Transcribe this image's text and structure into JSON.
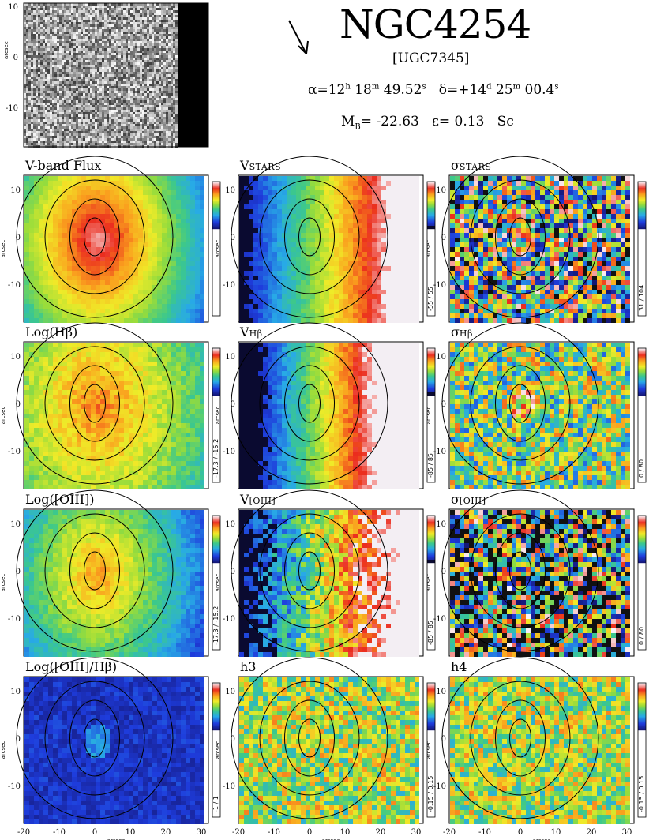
{
  "header": {
    "name": "NGC4254",
    "alt_name": "[UGC7345]",
    "ra_h": "12",
    "ra_m": "18",
    "ra_s": "49.52",
    "dec_d": "+14",
    "dec_m": "25",
    "dec_s": "00.4",
    "mb": "-22.63",
    "epsilon": "0.13",
    "type": "Sc"
  },
  "chart_data": {
    "type": "heatmap",
    "x_ticks": [
      -20,
      -10,
      0,
      10,
      20,
      30
    ],
    "y_ticks": [
      10,
      0,
      -10
    ],
    "xlim": [
      -20,
      32
    ],
    "ylim": [
      -18,
      13
    ],
    "xlabel": "arcsec",
    "ylabel": "arcsec",
    "panels": [
      {
        "row": 0,
        "col": 0,
        "title": "V-band Flux",
        "colormap": "rainbow",
        "pattern": "peak",
        "range": ""
      },
      {
        "row": 0,
        "col": 1,
        "title": "V",
        "title_sub": "STARS",
        "colormap": "velocity",
        "pattern": "velocity_stars",
        "range": "-55 / 55"
      },
      {
        "row": 0,
        "col": 2,
        "title": "σ",
        "title_sub": "STARS",
        "colormap": "rainbow",
        "pattern": "noisy",
        "range": "31 / 104"
      },
      {
        "row": 1,
        "col": 0,
        "title": "Log(Hβ)",
        "colormap": "rainbow",
        "pattern": "hbeta",
        "range": "-17.3 / -15.2"
      },
      {
        "row": 1,
        "col": 1,
        "title": "V",
        "title_sub": "Hβ",
        "colormap": "velocity",
        "pattern": "velocity_gas",
        "range": "-85 / 85"
      },
      {
        "row": 1,
        "col": 2,
        "title": "σ",
        "title_sub": "Hβ",
        "colormap": "rainbow",
        "pattern": "sigma_gas",
        "range": "0 / 80"
      },
      {
        "row": 2,
        "col": 0,
        "title": "Log([OIII])",
        "colormap": "rainbow",
        "pattern": "oiii",
        "range": "-17.3 / -15.2"
      },
      {
        "row": 2,
        "col": 1,
        "title": "V",
        "title_sub": "[OIII]",
        "colormap": "velocity",
        "pattern": "velocity_oiii",
        "range": "-85 / 85"
      },
      {
        "row": 2,
        "col": 2,
        "title": "σ",
        "title_sub": "[OIII]",
        "colormap": "rainbow",
        "pattern": "noisy_dark",
        "range": "0 / 80"
      },
      {
        "row": 3,
        "col": 0,
        "title": "Log([OIII]/Hβ)",
        "colormap": "rainbow",
        "pattern": "ratio",
        "range": "-1 / 1"
      },
      {
        "row": 3,
        "col": 1,
        "title": "h3",
        "colormap": "rainbow",
        "pattern": "hmoment",
        "range": "-0.15 / 0.15"
      },
      {
        "row": 3,
        "col": 2,
        "title": "h4",
        "colormap": "rainbow",
        "pattern": "hmoment",
        "range": "-0.15 / 0.15"
      }
    ]
  }
}
